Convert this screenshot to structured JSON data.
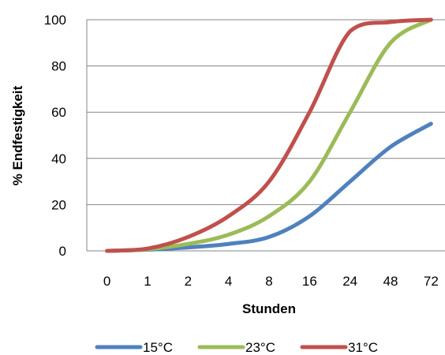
{
  "chart_data": {
    "type": "line",
    "xlabel": "Stunden",
    "ylabel": "% Endfestigkeit",
    "categories": [
      "0",
      "1",
      "2",
      "4",
      "8",
      "16",
      "24",
      "48",
      "72"
    ],
    "ylim": [
      0,
      100
    ],
    "yticks": [
      "0",
      "20",
      "40",
      "60",
      "80",
      "100"
    ],
    "grid": true,
    "legend_position": "bottom",
    "series": [
      {
        "name": "15°C",
        "color": "#4F81BD",
        "values": [
          0,
          0.5,
          1.5,
          3,
          6,
          15,
          30,
          45,
          55
        ]
      },
      {
        "name": "23°C",
        "color": "#9BBB59",
        "values": [
          0,
          0.7,
          3,
          7,
          15,
          30,
          60,
          90,
          100
        ]
      },
      {
        "name": "31°C",
        "color": "#C0504D",
        "values": [
          0,
          1,
          6,
          15,
          30,
          60,
          95,
          99,
          100
        ]
      }
    ]
  }
}
